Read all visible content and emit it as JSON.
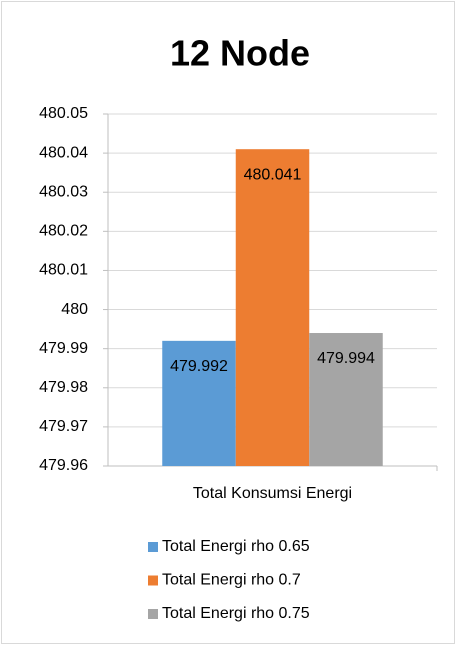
{
  "chart_data": {
    "type": "bar",
    "title": "12 Node",
    "categories": [
      "Total Konsumsi Energi"
    ],
    "series": [
      {
        "name": "Total Energi rho 0.65",
        "color": "#5b9bd5",
        "values": [
          479.992
        ]
      },
      {
        "name": "Total Energi rho 0.7",
        "color": "#ed7d31",
        "values": [
          480.041
        ]
      },
      {
        "name": "Total Energi rho 0.75",
        "color": "#a5a5a5",
        "values": [
          479.994
        ]
      }
    ],
    "ylim": [
      479.96,
      480.05
    ],
    "yticks": [
      479.96,
      479.97,
      479.98,
      479.99,
      480,
      480.01,
      480.02,
      480.03,
      480.04,
      480.05
    ],
    "grid": true,
    "legend": "bottom"
  }
}
